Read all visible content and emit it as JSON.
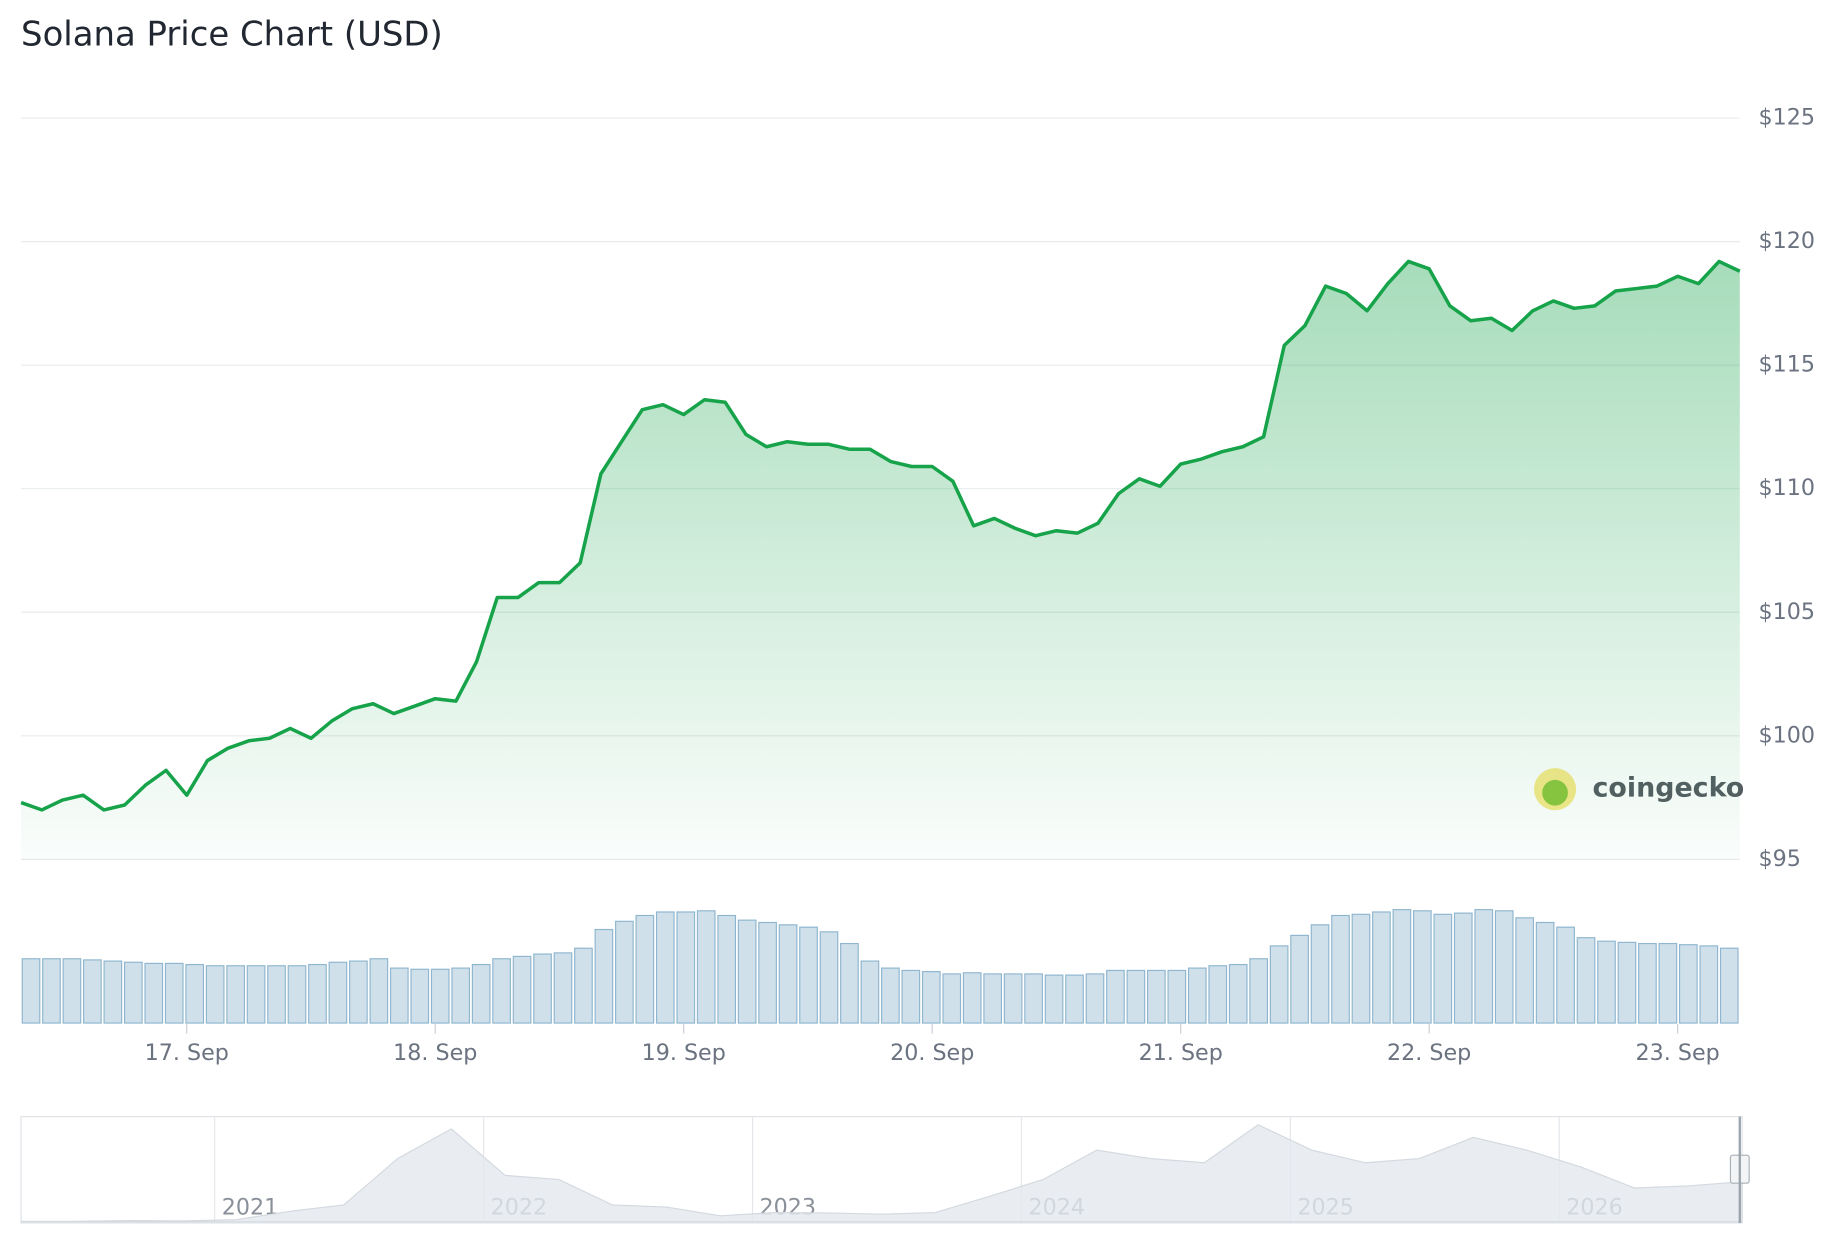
{
  "chart_data": {
    "type": "line",
    "title": "Solana Price Chart (USD)",
    "color": "#16a34a",
    "values": [
      97.3,
      97.0,
      97.4,
      97.6,
      97.0,
      97.2,
      98.0,
      98.6,
      97.6,
      99.0,
      99.5,
      99.8,
      99.9,
      100.3,
      99.9,
      100.6,
      101.1,
      101.3,
      100.9,
      101.2,
      101.5,
      101.4,
      103.0,
      105.6,
      105.6,
      106.2,
      106.2,
      107.0,
      110.6,
      111.9,
      113.2,
      113.4,
      113.0,
      113.6,
      113.5,
      112.2,
      111.7,
      111.9,
      111.8,
      111.8,
      111.6,
      111.6,
      111.1,
      110.9,
      110.9,
      110.3,
      108.5,
      108.8,
      108.4,
      108.1,
      108.3,
      108.2,
      108.6,
      109.8,
      110.4,
      110.1,
      111.0,
      111.2,
      111.5,
      111.7,
      112.1,
      115.8,
      116.6,
      118.2,
      117.9,
      117.2,
      118.3,
      119.2,
      118.9,
      117.4,
      116.8,
      116.9,
      116.4,
      117.2,
      117.6,
      117.3,
      117.4,
      118.0,
      118.1,
      118.2,
      118.6,
      118.3,
      119.2,
      118.8
    ],
    "xlim": [
      0,
      83
    ],
    "xticks": [
      {
        "value": 8,
        "label": "17. Sep"
      },
      {
        "value": 20,
        "label": "18. Sep"
      },
      {
        "value": 32,
        "label": "19. Sep"
      },
      {
        "value": 44,
        "label": "20. Sep"
      },
      {
        "value": 56,
        "label": "21. Sep"
      },
      {
        "value": 68,
        "label": "22. Sep"
      },
      {
        "value": 80,
        "label": "23. Sep"
      }
    ],
    "ylim": [
      95,
      125
    ],
    "yticks": [
      {
        "value": 95,
        "label": "$95"
      },
      {
        "value": 100,
        "label": "$100"
      },
      {
        "value": 105,
        "label": "$105"
      },
      {
        "value": 110,
        "label": "$110"
      },
      {
        "value": 115,
        "label": "$115"
      },
      {
        "value": 120,
        "label": "$120"
      },
      {
        "value": 125,
        "label": "$125"
      }
    ],
    "grid": true,
    "watermark": "coingecko",
    "volume": {
      "type": "bar",
      "color": "#8fb6cf",
      "values": [
        55,
        55,
        55,
        54,
        53,
        52,
        51,
        51,
        50,
        49,
        49,
        49,
        49,
        49,
        50,
        52,
        53,
        55,
        47,
        46,
        46,
        47,
        50,
        55,
        57,
        59,
        60,
        64,
        80,
        87,
        92,
        95,
        95,
        96,
        92,
        88,
        86,
        84,
        82,
        78,
        68,
        53,
        47,
        45,
        44,
        42,
        43,
        42,
        42,
        42,
        41,
        41,
        42,
        45,
        45,
        45,
        45,
        47,
        49,
        50,
        55,
        66,
        75,
        84,
        92,
        93,
        95,
        97,
        96,
        93,
        94,
        97,
        96,
        90,
        86,
        82,
        73,
        70,
        69,
        68,
        68,
        67,
        66,
        64
      ]
    },
    "navigator": {
      "type": "area",
      "color": "#e4e9ee",
      "values": [
        1,
        1,
        3,
        2,
        5,
        25,
        40,
        150,
        220,
        110,
        100,
        40,
        35,
        14,
        22,
        21,
        18,
        22,
        60,
        100,
        170,
        150,
        140,
        230,
        170,
        140,
        150,
        200,
        170,
        130,
        80,
        85,
        95
      ],
      "xlim": [
        0,
        32
      ],
      "xticks": [
        {
          "value": 3.6,
          "label": "2021"
        },
        {
          "value": 8.6,
          "label": "2022"
        },
        {
          "value": 13.6,
          "label": "2023"
        },
        {
          "value": 18.6,
          "label": "2024"
        },
        {
          "value": 23.6,
          "label": "2025"
        },
        {
          "value": 28.6,
          "label": "2026"
        }
      ]
    }
  }
}
